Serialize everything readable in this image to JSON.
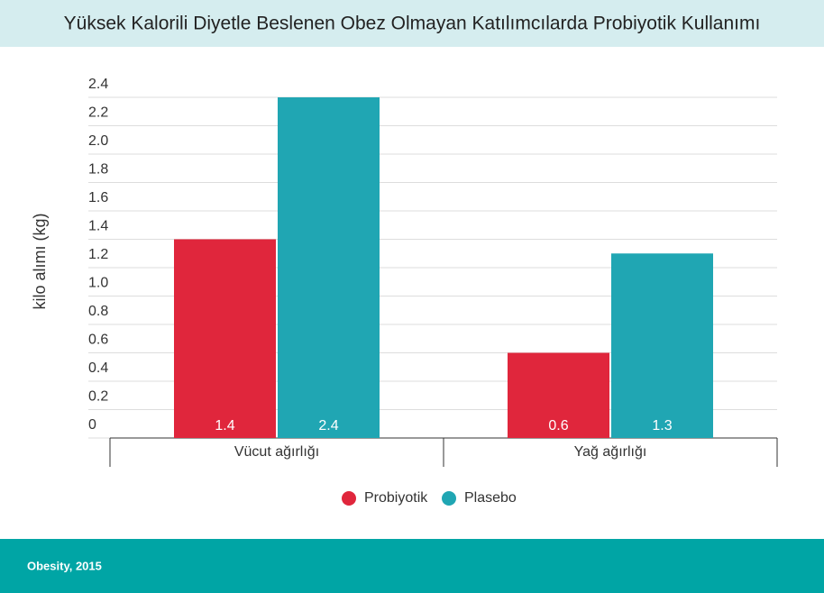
{
  "chart_data": {
    "type": "bar",
    "title": "Yüksek Kalorili Diyetle Beslenen Obez Olmayan Katılımcılarda Probiyotik Kullanımı",
    "y_label": "kilo alımı (kg)",
    "categories": [
      "Vücut ağırlığı",
      "Yağ ağırlığı"
    ],
    "series": [
      {
        "name": "Probiyotik",
        "color": "#e0263c",
        "values": [
          1.4,
          0.6
        ]
      },
      {
        "name": "Plasebo",
        "color": "#20a6b3",
        "values": [
          2.4,
          1.3
        ]
      }
    ],
    "ylim": [
      0,
      2.4
    ],
    "yticks": [
      0,
      0.2,
      0.4,
      0.6,
      0.8,
      {
        "value": 1,
        "label": "1.0"
      },
      1.2,
      1.4,
      1.6,
      1.8,
      {
        "value": 2,
        "label": "2.0"
      },
      2.2,
      2.4
    ],
    "grid": true,
    "source": "Obesity, 2015"
  }
}
